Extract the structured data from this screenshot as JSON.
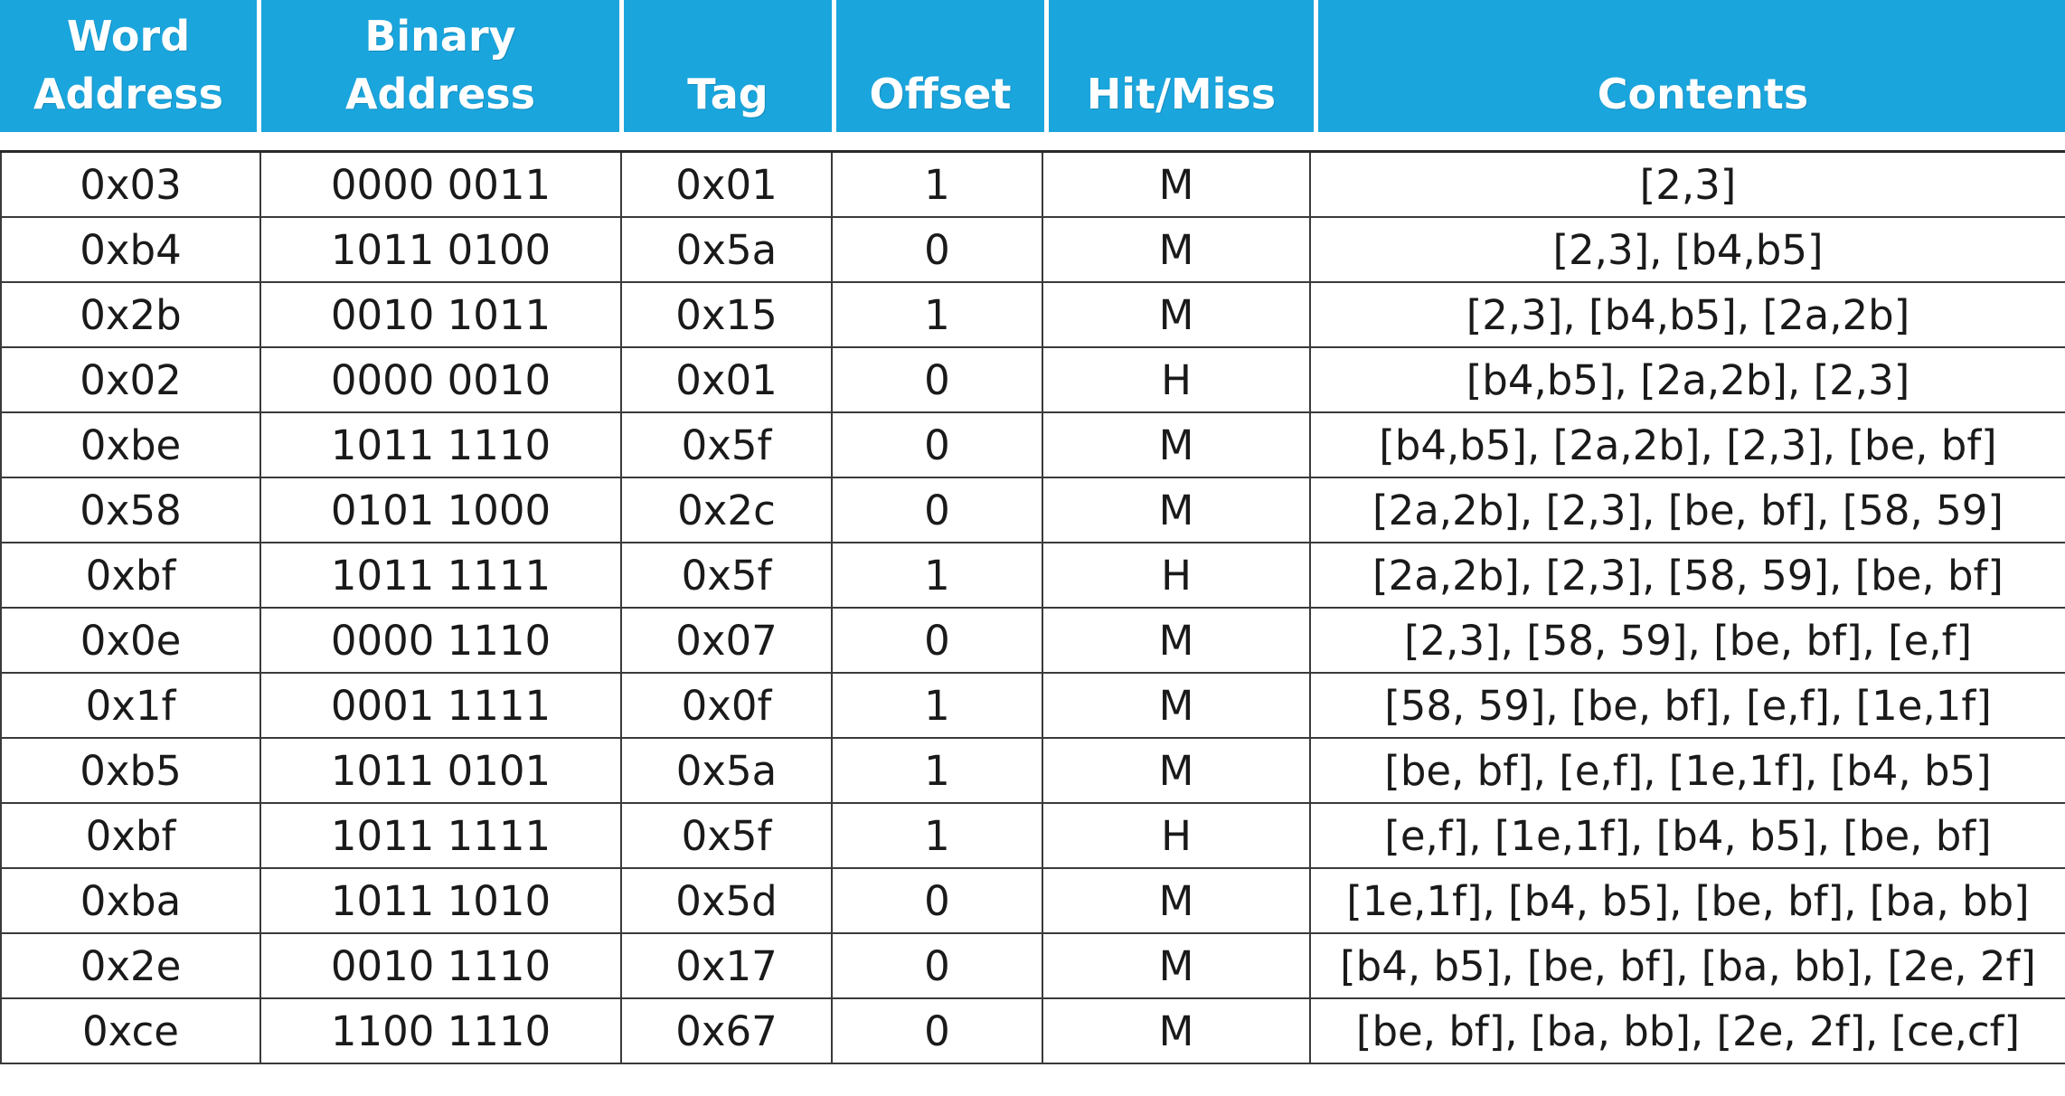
{
  "header": {
    "columns": [
      {
        "line1": "Word",
        "line2": "Address"
      },
      {
        "line1": "Binary",
        "line2": "Address"
      },
      {
        "line1": "",
        "line2": "Tag"
      },
      {
        "line1": "",
        "line2": "Offset"
      },
      {
        "line1": "",
        "line2": "Hit/Miss"
      },
      {
        "line1": "",
        "line2": "Contents"
      }
    ]
  },
  "colors": {
    "header_bg": "#1aa5dd",
    "header_text": "#ffffff",
    "border": "#3a3a3a"
  },
  "rows": [
    {
      "word": "0x03",
      "binary": "0000 0011",
      "tag": "0x01",
      "offset": "1",
      "hitmiss": "M",
      "contents": "[2,3]"
    },
    {
      "word": "0xb4",
      "binary": "1011 0100",
      "tag": "0x5a",
      "offset": "0",
      "hitmiss": "M",
      "contents": "[2,3], [b4,b5]"
    },
    {
      "word": "0x2b",
      "binary": "0010 1011",
      "tag": "0x15",
      "offset": "1",
      "hitmiss": "M",
      "contents": "[2,3], [b4,b5], [2a,2b]"
    },
    {
      "word": "0x02",
      "binary": "0000 0010",
      "tag": "0x01",
      "offset": "0",
      "hitmiss": "H",
      "contents": "[b4,b5], [2a,2b], [2,3]"
    },
    {
      "word": "0xbe",
      "binary": "1011 1110",
      "tag": "0x5f",
      "offset": "0",
      "hitmiss": "M",
      "contents": "[b4,b5], [2a,2b], [2,3], [be, bf]"
    },
    {
      "word": "0x58",
      "binary": "0101 1000",
      "tag": "0x2c",
      "offset": "0",
      "hitmiss": "M",
      "contents": "[2a,2b], [2,3], [be, bf], [58, 59]"
    },
    {
      "word": "0xbf",
      "binary": "1011 1111",
      "tag": "0x5f",
      "offset": "1",
      "hitmiss": "H",
      "contents": "[2a,2b], [2,3], [58, 59], [be, bf]"
    },
    {
      "word": "0x0e",
      "binary": "0000 1110",
      "tag": "0x07",
      "offset": "0",
      "hitmiss": "M",
      "contents": "[2,3], [58, 59], [be, bf], [e,f]"
    },
    {
      "word": "0x1f",
      "binary": "0001 1111",
      "tag": "0x0f",
      "offset": "1",
      "hitmiss": "M",
      "contents": "[58, 59], [be, bf], [e,f], [1e,1f]"
    },
    {
      "word": "0xb5",
      "binary": "1011 0101",
      "tag": "0x5a",
      "offset": "1",
      "hitmiss": "M",
      "contents": "[be, bf], [e,f], [1e,1f], [b4, b5]"
    },
    {
      "word": "0xbf",
      "binary": "1011 1111",
      "tag": "0x5f",
      "offset": "1",
      "hitmiss": "H",
      "contents": "[e,f], [1e,1f], [b4, b5], [be, bf]"
    },
    {
      "word": "0xba",
      "binary": "1011 1010",
      "tag": "0x5d",
      "offset": "0",
      "hitmiss": "M",
      "contents": "[1e,1f], [b4, b5], [be, bf], [ba, bb]"
    },
    {
      "word": "0x2e",
      "binary": "0010 1110",
      "tag": "0x17",
      "offset": "0",
      "hitmiss": "M",
      "contents": "[b4, b5], [be, bf], [ba, bb], [2e, 2f]"
    },
    {
      "word": "0xce",
      "binary": "1100 1110",
      "tag": "0x67",
      "offset": "0",
      "hitmiss": "M",
      "contents": "[be, bf], [ba, bb], [2e, 2f], [ce,cf]"
    }
  ]
}
